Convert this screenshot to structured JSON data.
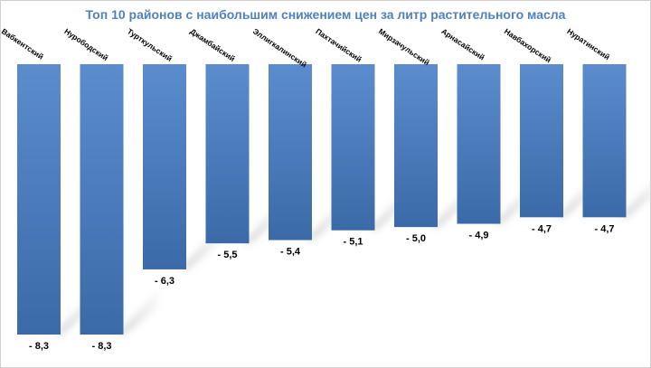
{
  "chart_data": {
    "type": "bar",
    "title": "Топ 10 районов с наибольшим снижением цен за литр растительного масла",
    "categories": [
      "Вабкентский",
      "Нурободский",
      "Турткульский",
      "Джамбайский",
      "Эллигкалинский",
      "Пахтачийский",
      "Мирзачульский",
      "Арнасайский",
      "Навбахорский",
      "Нуратинский"
    ],
    "values": [
      -8.3,
      -8.3,
      -6.3,
      -5.5,
      -5.4,
      -5.1,
      -5.0,
      -4.9,
      -4.7,
      -4.7
    ],
    "value_labels": [
      "- 8,3",
      "- 8,3",
      "- 6,3",
      "- 5,5",
      "- 5,4",
      "- 5,1",
      "- 5,0",
      "- 4,9",
      "- 4,7",
      "- 4,7"
    ],
    "ylim": [
      -8.3,
      0
    ],
    "xlabel": "",
    "ylabel": "",
    "grid": false,
    "legend": "none",
    "bar_color_top": "#5b8ccd",
    "bar_color_bottom": "#3b6aa8",
    "title_color": "#4f81bd"
  }
}
